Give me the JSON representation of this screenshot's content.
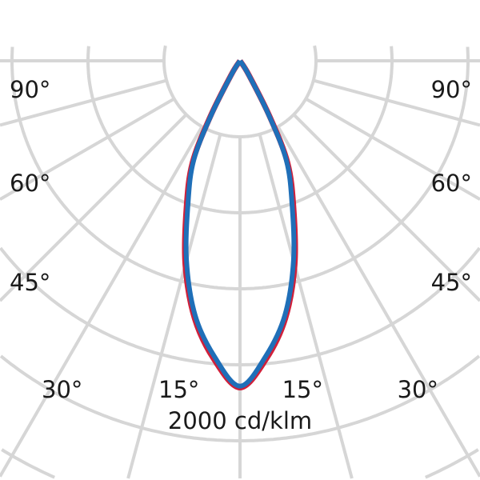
{
  "chart_data": {
    "type": "line",
    "projection": "polar",
    "unit_label": "2000 cd/klm",
    "angle_labels_left": [
      "90°",
      "60°",
      "45°",
      "30°",
      "15°"
    ],
    "angle_labels_right": [
      "90°",
      "60°",
      "45°",
      "30°",
      "15°"
    ],
    "ring_step_cd_klm": 500,
    "grid": true,
    "angle_step_deg": 15,
    "series": [
      {
        "color": "#d0203a",
        "angles_deg": [
          0,
          5,
          10,
          15,
          20,
          25,
          28,
          32,
          35
        ],
        "values": [
          2150,
          1970,
          1720,
          1390,
          1030,
          740,
          420,
          110,
          0
        ]
      },
      {
        "color": "#1f6fb8",
        "angles_deg": [
          0,
          5,
          10,
          15,
          20,
          25,
          28,
          32,
          35
        ],
        "values": [
          2140,
          1950,
          1700,
          1360,
          1000,
          720,
          400,
          100,
          0
        ]
      }
    ]
  },
  "colors": {
    "grid": "#d6d6d6",
    "text": "#1a1a1a"
  }
}
